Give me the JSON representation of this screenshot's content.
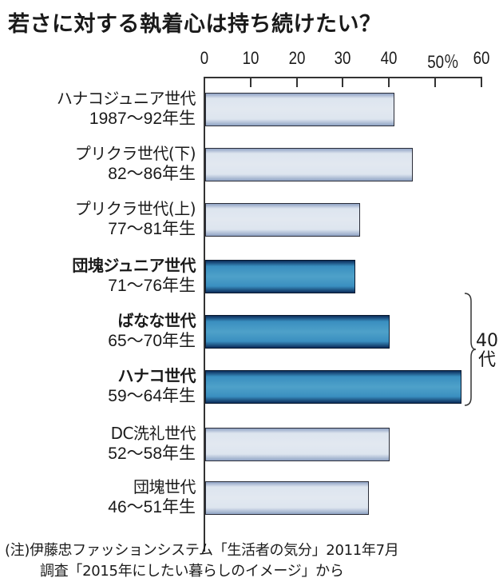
{
  "title": "若さに対する執着心は持ち続けたい？",
  "axis": {
    "ticks": [
      "0",
      "10",
      "20",
      "30",
      "40",
      "50％",
      "60"
    ],
    "unit": "%"
  },
  "rows": [
    {
      "name": "ハナコジュニア世代",
      "years": "1987～92年生",
      "value": 41,
      "style": "light"
    },
    {
      "name": "プリクラ世代(下)",
      "years": "82～86年生",
      "value": 45,
      "style": "light"
    },
    {
      "name": "プリクラ世代(上)",
      "years": "77～81年生",
      "value": 33.5,
      "style": "light"
    },
    {
      "name": "団塊ジュニア世代",
      "years": "71～76年生",
      "value": 32.5,
      "style": "dark"
    },
    {
      "name": "ばなな世代",
      "years": "65～70年生",
      "value": 40,
      "style": "dark"
    },
    {
      "name": "ハナコ世代",
      "years": "59～64年生",
      "value": 55.5,
      "style": "dark"
    },
    {
      "name": "DC洗礼世代",
      "years": "52～58年生",
      "value": 40,
      "style": "light"
    },
    {
      "name": "団塊世代",
      "years": "46～51年生",
      "value": 35.5,
      "style": "light"
    }
  ],
  "brace": {
    "line1": "40",
    "line2": "代"
  },
  "note": {
    "line1": "(注)伊藤忠ファッションシステム「生活者の気分」2011年7月",
    "line2": "調査「2015年にしたい暮らしのイメージ」から"
  },
  "colors": {
    "light_bar": "#e2e8f0",
    "dark_bar": "#4ea1c9",
    "border": "#2a2d38"
  },
  "chart_data": {
    "type": "bar",
    "orientation": "horizontal",
    "title": "若さに対する執着心は持ち続けたい？",
    "categories": [
      "ハナコジュニア世代 1987～92年生",
      "プリクラ世代(下) 82～86年生",
      "プリクラ世代(上) 77～81年生",
      "団塊ジュニア世代 71～76年生",
      "ばなな世代 65～70年生",
      "ハナコ世代 59～64年生",
      "DC洗礼世代 52～58年生",
      "団塊世代 46～51年生"
    ],
    "values": [
      41,
      45,
      33.5,
      32.5,
      40,
      55.5,
      40,
      35.5
    ],
    "xlabel": "%",
    "ylabel": "",
    "xlim": [
      0,
      60
    ],
    "xticks": [
      0,
      10,
      20,
      30,
      40,
      50,
      60
    ],
    "highlighted": [
      "団塊ジュニア世代",
      "ばなな世代",
      "ハナコ世代"
    ],
    "annotations": [
      "40代 (brace spanning ばなな世代 and ハナコ世代)"
    ],
    "note": "(注)伊藤忠ファッションシステム「生活者の気分」2011年7月調査「2015年にしたい暮らしのイメージ」から",
    "grid": false,
    "legend": null
  }
}
